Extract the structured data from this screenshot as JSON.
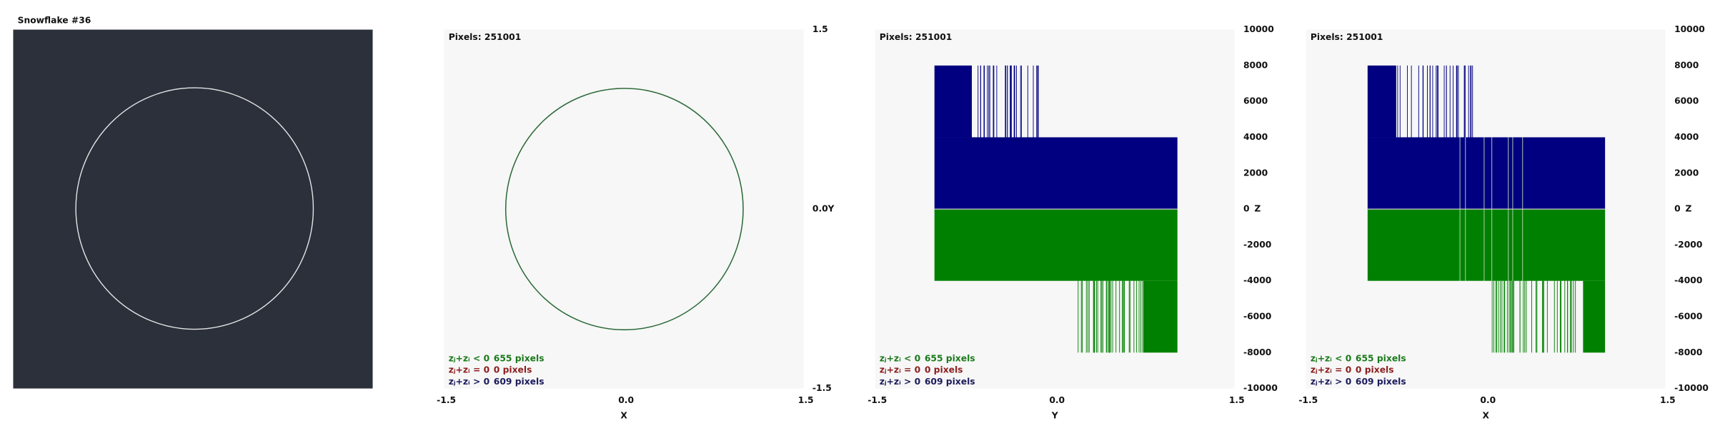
{
  "title": "Snowflake #36",
  "panels": [
    {
      "pixels": "Pixels: 251001",
      "right_ticks": [
        "1.5",
        "0.0",
        "-1.5"
      ],
      "right_axis_label": "Y",
      "bottom_ticks": [
        "-1.5",
        "0.0",
        "1.5"
      ],
      "bottom_axis_label": "X",
      "legend": [
        {
          "label": "zⱼ+zᵢ < 0",
          "count": "655 pixels"
        },
        {
          "label": "zⱼ+zᵢ = 0",
          "count": "0 pixels"
        },
        {
          "label": "zⱼ+zᵢ > 0",
          "count": "609 pixels"
        }
      ]
    },
    {
      "pixels": "Pixels: 251001",
      "right_ticks": [
        "10000",
        "8000",
        "6000",
        "4000",
        "2000",
        "0",
        "-2000",
        "-4000",
        "-6000",
        "-8000",
        "-10000"
      ],
      "right_axis_label": "Z",
      "bottom_ticks": [
        "-1.5",
        "0.0",
        "1.5"
      ],
      "bottom_axis_label": "Y",
      "legend": [
        {
          "label": "zⱼ+zᵢ < 0",
          "count": "655 pixels"
        },
        {
          "label": "zⱼ+zᵢ = 0",
          "count": "0 pixels"
        },
        {
          "label": "zⱼ+zᵢ > 0",
          "count": "609 pixels"
        }
      ]
    },
    {
      "pixels": "Pixels: 251001",
      "right_ticks": [
        "10000",
        "8000",
        "6000",
        "4000",
        "2000",
        "0",
        "-2000",
        "-4000",
        "-6000",
        "-8000",
        "-10000"
      ],
      "right_axis_label": "Z",
      "bottom_ticks": [
        "-1.5",
        "0.0",
        "1.5"
      ],
      "bottom_axis_label": "X",
      "legend": [
        {
          "label": "zⱼ+zᵢ < 0",
          "count": "655 pixels"
        },
        {
          "label": "zⱼ+zᵢ = 0",
          "count": "0 pixels"
        },
        {
          "label": "zⱼ+zᵢ > 0",
          "count": "609 pixels"
        }
      ]
    }
  ]
}
